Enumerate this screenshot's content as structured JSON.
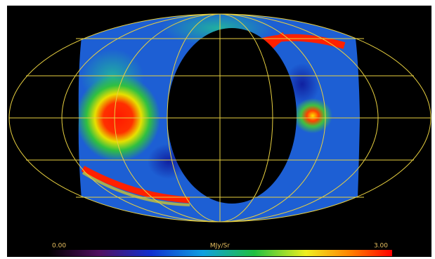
{
  "colorbar": {
    "min_label": "0.00",
    "unit": "MJy/Sr",
    "max_label": "3.00"
  }
}
